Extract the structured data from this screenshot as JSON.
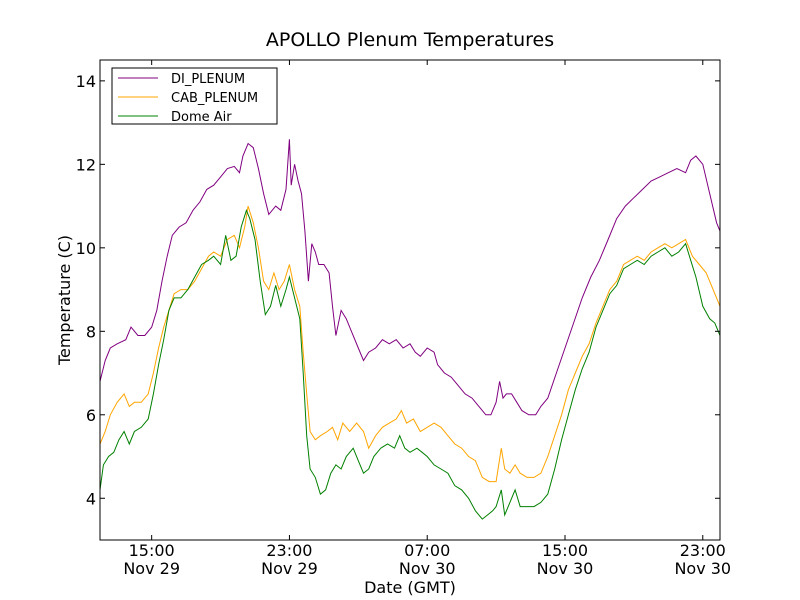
{
  "chart_data": {
    "type": "line",
    "title": "APOLLO Plenum Temperatures",
    "xlabel": "Date (GMT)",
    "ylabel": "Temperature (C)",
    "x_unit": "hours since Nov 29 12:00 GMT",
    "xlim": [
      0,
      36
    ],
    "ylim": [
      3,
      14.5
    ],
    "y_ticks": [
      4,
      6,
      8,
      10,
      12,
      14
    ],
    "x_ticks": [
      {
        "x": 3,
        "time": "15:00",
        "date": "Nov 29"
      },
      {
        "x": 11,
        "time": "23:00",
        "date": "Nov 29"
      },
      {
        "x": 19,
        "time": "07:00",
        "date": "Nov 30"
      },
      {
        "x": 27,
        "time": "15:00",
        "date": "Nov 30"
      },
      {
        "x": 35,
        "time": "23:00",
        "date": "Nov 30"
      }
    ],
    "grid": false,
    "legend_position": "top-left",
    "series": [
      {
        "name": "DI_PLENUM",
        "color": "#800080",
        "points": [
          [
            0,
            6.8
          ],
          [
            0.3,
            7.3
          ],
          [
            0.6,
            7.6
          ],
          [
            1,
            7.7
          ],
          [
            1.5,
            7.8
          ],
          [
            1.8,
            8.1
          ],
          [
            2.2,
            7.9
          ],
          [
            2.6,
            7.9
          ],
          [
            3,
            8.1
          ],
          [
            3.3,
            8.5
          ],
          [
            3.6,
            9.2
          ],
          [
            3.9,
            9.8
          ],
          [
            4.2,
            10.3
          ],
          [
            4.6,
            10.5
          ],
          [
            5,
            10.6
          ],
          [
            5.4,
            10.9
          ],
          [
            5.8,
            11.1
          ],
          [
            6.2,
            11.4
          ],
          [
            6.6,
            11.5
          ],
          [
            7,
            11.7
          ],
          [
            7.4,
            11.9
          ],
          [
            7.8,
            11.95
          ],
          [
            8.1,
            11.8
          ],
          [
            8.3,
            12.2
          ],
          [
            8.6,
            12.5
          ],
          [
            8.9,
            12.4
          ],
          [
            9.2,
            11.9
          ],
          [
            9.5,
            11.3
          ],
          [
            9.8,
            10.8
          ],
          [
            10.2,
            11.0
          ],
          [
            10.5,
            10.9
          ],
          [
            10.8,
            11.4
          ],
          [
            11,
            12.6
          ],
          [
            11.1,
            11.5
          ],
          [
            11.3,
            12.0
          ],
          [
            11.5,
            11.6
          ],
          [
            11.7,
            11.3
          ],
          [
            11.9,
            10.4
          ],
          [
            12.1,
            9.2
          ],
          [
            12.3,
            10.1
          ],
          [
            12.5,
            9.9
          ],
          [
            12.7,
            9.6
          ],
          [
            13,
            9.6
          ],
          [
            13.3,
            9.4
          ],
          [
            13.5,
            8.6
          ],
          [
            13.7,
            7.9
          ],
          [
            14,
            8.5
          ],
          [
            14.3,
            8.3
          ],
          [
            14.6,
            8.0
          ],
          [
            15,
            7.6
          ],
          [
            15.3,
            7.3
          ],
          [
            15.6,
            7.5
          ],
          [
            16,
            7.6
          ],
          [
            16.4,
            7.8
          ],
          [
            16.8,
            7.7
          ],
          [
            17.2,
            7.8
          ],
          [
            17.6,
            7.6
          ],
          [
            18,
            7.7
          ],
          [
            18.3,
            7.5
          ],
          [
            18.6,
            7.4
          ],
          [
            19,
            7.6
          ],
          [
            19.4,
            7.5
          ],
          [
            19.6,
            7.2
          ],
          [
            20,
            7.0
          ],
          [
            20.4,
            6.9
          ],
          [
            20.8,
            6.7
          ],
          [
            21.2,
            6.5
          ],
          [
            21.6,
            6.4
          ],
          [
            22,
            6.2
          ],
          [
            22.4,
            6.0
          ],
          [
            22.7,
            6.0
          ],
          [
            23,
            6.3
          ],
          [
            23.2,
            6.8
          ],
          [
            23.4,
            6.4
          ],
          [
            23.6,
            6.5
          ],
          [
            23.9,
            6.5
          ],
          [
            24.2,
            6.3
          ],
          [
            24.5,
            6.1
          ],
          [
            24.9,
            6.0
          ],
          [
            25.3,
            6.0
          ],
          [
            25.6,
            6.2
          ],
          [
            26,
            6.4
          ],
          [
            26.5,
            7.0
          ],
          [
            27,
            7.6
          ],
          [
            27.5,
            8.2
          ],
          [
            28,
            8.8
          ],
          [
            28.5,
            9.3
          ],
          [
            29,
            9.7
          ],
          [
            29.5,
            10.2
          ],
          [
            30,
            10.7
          ],
          [
            30.5,
            11.0
          ],
          [
            31,
            11.2
          ],
          [
            31.5,
            11.4
          ],
          [
            32,
            11.6
          ],
          [
            32.5,
            11.7
          ],
          [
            33,
            11.8
          ],
          [
            33.5,
            11.9
          ],
          [
            34,
            11.8
          ],
          [
            34.3,
            12.1
          ],
          [
            34.6,
            12.2
          ],
          [
            35,
            12.0
          ],
          [
            35.4,
            11.3
          ],
          [
            35.8,
            10.6
          ],
          [
            36,
            10.4
          ]
        ]
      },
      {
        "name": "CAB_PLENUM",
        "color": "#FFA500",
        "points": [
          [
            0,
            5.3
          ],
          [
            0.3,
            5.6
          ],
          [
            0.6,
            6.0
          ],
          [
            1,
            6.3
          ],
          [
            1.4,
            6.5
          ],
          [
            1.7,
            6.2
          ],
          [
            2,
            6.3
          ],
          [
            2.4,
            6.3
          ],
          [
            2.8,
            6.5
          ],
          [
            3.1,
            7.0
          ],
          [
            3.4,
            7.6
          ],
          [
            3.7,
            8.1
          ],
          [
            4,
            8.5
          ],
          [
            4.3,
            8.9
          ],
          [
            4.7,
            9.0
          ],
          [
            5.1,
            9.0
          ],
          [
            5.5,
            9.2
          ],
          [
            5.9,
            9.5
          ],
          [
            6.3,
            9.8
          ],
          [
            6.6,
            9.9
          ],
          [
            7,
            9.8
          ],
          [
            7.4,
            10.2
          ],
          [
            7.8,
            10.3
          ],
          [
            8.1,
            10.0
          ],
          [
            8.4,
            10.5
          ],
          [
            8.6,
            11.0
          ],
          [
            8.9,
            10.6
          ],
          [
            9.2,
            10.0
          ],
          [
            9.5,
            9.2
          ],
          [
            9.8,
            9.0
          ],
          [
            10.1,
            9.4
          ],
          [
            10.4,
            9.0
          ],
          [
            10.7,
            9.2
          ],
          [
            11,
            9.6
          ],
          [
            11.3,
            9.0
          ],
          [
            11.6,
            8.6
          ],
          [
            11.8,
            7.5
          ],
          [
            12,
            6.5
          ],
          [
            12.2,
            5.6
          ],
          [
            12.5,
            5.4
          ],
          [
            12.8,
            5.5
          ],
          [
            13.2,
            5.6
          ],
          [
            13.5,
            5.7
          ],
          [
            13.8,
            5.4
          ],
          [
            14.1,
            5.8
          ],
          [
            14.5,
            5.6
          ],
          [
            14.9,
            5.8
          ],
          [
            15.3,
            5.6
          ],
          [
            15.6,
            5.2
          ],
          [
            16,
            5.5
          ],
          [
            16.4,
            5.7
          ],
          [
            16.8,
            5.8
          ],
          [
            17.2,
            5.9
          ],
          [
            17.5,
            6.1
          ],
          [
            17.8,
            5.8
          ],
          [
            18.2,
            5.9
          ],
          [
            18.6,
            5.6
          ],
          [
            19,
            5.7
          ],
          [
            19.4,
            5.8
          ],
          [
            19.8,
            5.7
          ],
          [
            20.2,
            5.5
          ],
          [
            20.6,
            5.3
          ],
          [
            21,
            5.2
          ],
          [
            21.4,
            5.0
          ],
          [
            21.8,
            4.9
          ],
          [
            22.2,
            4.5
          ],
          [
            22.6,
            4.4
          ],
          [
            23,
            4.4
          ],
          [
            23.3,
            5.2
          ],
          [
            23.5,
            4.7
          ],
          [
            23.8,
            4.6
          ],
          [
            24.1,
            4.8
          ],
          [
            24.4,
            4.6
          ],
          [
            24.8,
            4.5
          ],
          [
            25.2,
            4.5
          ],
          [
            25.6,
            4.6
          ],
          [
            26,
            5.0
          ],
          [
            26.4,
            5.5
          ],
          [
            26.8,
            6.0
          ],
          [
            27.2,
            6.6
          ],
          [
            27.6,
            7.0
          ],
          [
            28,
            7.4
          ],
          [
            28.4,
            7.7
          ],
          [
            28.8,
            8.2
          ],
          [
            29.2,
            8.6
          ],
          [
            29.6,
            9.0
          ],
          [
            30,
            9.2
          ],
          [
            30.4,
            9.6
          ],
          [
            30.8,
            9.7
          ],
          [
            31.2,
            9.8
          ],
          [
            31.6,
            9.7
          ],
          [
            32,
            9.9
          ],
          [
            32.4,
            10.0
          ],
          [
            32.8,
            10.1
          ],
          [
            33.2,
            10.0
          ],
          [
            33.6,
            10.1
          ],
          [
            34,
            10.2
          ],
          [
            34.4,
            9.8
          ],
          [
            34.8,
            9.6
          ],
          [
            35.2,
            9.4
          ],
          [
            35.6,
            9.0
          ],
          [
            36,
            8.6
          ]
        ]
      },
      {
        "name": "Dome Air",
        "color": "#008000",
        "points": [
          [
            0,
            4.2
          ],
          [
            0.2,
            4.8
          ],
          [
            0.5,
            5.0
          ],
          [
            0.8,
            5.1
          ],
          [
            1.1,
            5.4
          ],
          [
            1.4,
            5.6
          ],
          [
            1.7,
            5.3
          ],
          [
            2,
            5.6
          ],
          [
            2.4,
            5.7
          ],
          [
            2.8,
            5.9
          ],
          [
            3.1,
            6.5
          ],
          [
            3.4,
            7.2
          ],
          [
            3.7,
            7.8
          ],
          [
            4,
            8.5
          ],
          [
            4.3,
            8.8
          ],
          [
            4.7,
            8.8
          ],
          [
            5.1,
            9.0
          ],
          [
            5.5,
            9.3
          ],
          [
            5.9,
            9.6
          ],
          [
            6.3,
            9.7
          ],
          [
            6.6,
            9.8
          ],
          [
            7,
            9.6
          ],
          [
            7.3,
            10.3
          ],
          [
            7.6,
            9.7
          ],
          [
            7.9,
            9.8
          ],
          [
            8.2,
            10.5
          ],
          [
            8.5,
            10.9
          ],
          [
            8.7,
            10.7
          ],
          [
            9,
            10.2
          ],
          [
            9.3,
            9.2
          ],
          [
            9.6,
            8.4
          ],
          [
            9.9,
            8.6
          ],
          [
            10.2,
            9.1
          ],
          [
            10.5,
            8.6
          ],
          [
            10.8,
            9.0
          ],
          [
            11,
            9.3
          ],
          [
            11.3,
            8.8
          ],
          [
            11.6,
            8.3
          ],
          [
            11.8,
            7.0
          ],
          [
            12,
            5.5
          ],
          [
            12.2,
            4.7
          ],
          [
            12.5,
            4.5
          ],
          [
            12.8,
            4.1
          ],
          [
            13.1,
            4.2
          ],
          [
            13.4,
            4.6
          ],
          [
            13.7,
            4.8
          ],
          [
            14,
            4.7
          ],
          [
            14.3,
            5.0
          ],
          [
            14.7,
            5.2
          ],
          [
            15,
            4.9
          ],
          [
            15.3,
            4.6
          ],
          [
            15.6,
            4.7
          ],
          [
            15.9,
            5.0
          ],
          [
            16.3,
            5.2
          ],
          [
            16.7,
            5.3
          ],
          [
            17.1,
            5.2
          ],
          [
            17.4,
            5.5
          ],
          [
            17.7,
            5.2
          ],
          [
            18,
            5.1
          ],
          [
            18.4,
            5.2
          ],
          [
            18.7,
            5.1
          ],
          [
            19,
            5.0
          ],
          [
            19.4,
            4.8
          ],
          [
            19.8,
            4.7
          ],
          [
            20.2,
            4.6
          ],
          [
            20.6,
            4.3
          ],
          [
            21,
            4.2
          ],
          [
            21.4,
            4.0
          ],
          [
            21.8,
            3.7
          ],
          [
            22.2,
            3.5
          ],
          [
            22.5,
            3.6
          ],
          [
            22.8,
            3.7
          ],
          [
            23,
            3.8
          ],
          [
            23.3,
            4.2
          ],
          [
            23.5,
            3.6
          ],
          [
            23.8,
            3.9
          ],
          [
            24.1,
            4.2
          ],
          [
            24.4,
            3.8
          ],
          [
            24.8,
            3.8
          ],
          [
            25.2,
            3.8
          ],
          [
            25.6,
            3.9
          ],
          [
            26,
            4.1
          ],
          [
            26.4,
            4.7
          ],
          [
            26.8,
            5.4
          ],
          [
            27.2,
            6.0
          ],
          [
            27.6,
            6.6
          ],
          [
            28,
            7.1
          ],
          [
            28.4,
            7.5
          ],
          [
            28.8,
            8.1
          ],
          [
            29.2,
            8.5
          ],
          [
            29.6,
            8.9
          ],
          [
            30,
            9.1
          ],
          [
            30.4,
            9.5
          ],
          [
            30.8,
            9.6
          ],
          [
            31.2,
            9.7
          ],
          [
            31.6,
            9.6
          ],
          [
            32,
            9.8
          ],
          [
            32.4,
            9.9
          ],
          [
            32.8,
            10.0
          ],
          [
            33.2,
            9.8
          ],
          [
            33.6,
            9.9
          ],
          [
            34,
            10.1
          ],
          [
            34.3,
            9.7
          ],
          [
            34.6,
            9.3
          ],
          [
            35,
            8.6
          ],
          [
            35.4,
            8.3
          ],
          [
            35.7,
            8.2
          ],
          [
            36,
            7.9
          ]
        ]
      }
    ]
  }
}
